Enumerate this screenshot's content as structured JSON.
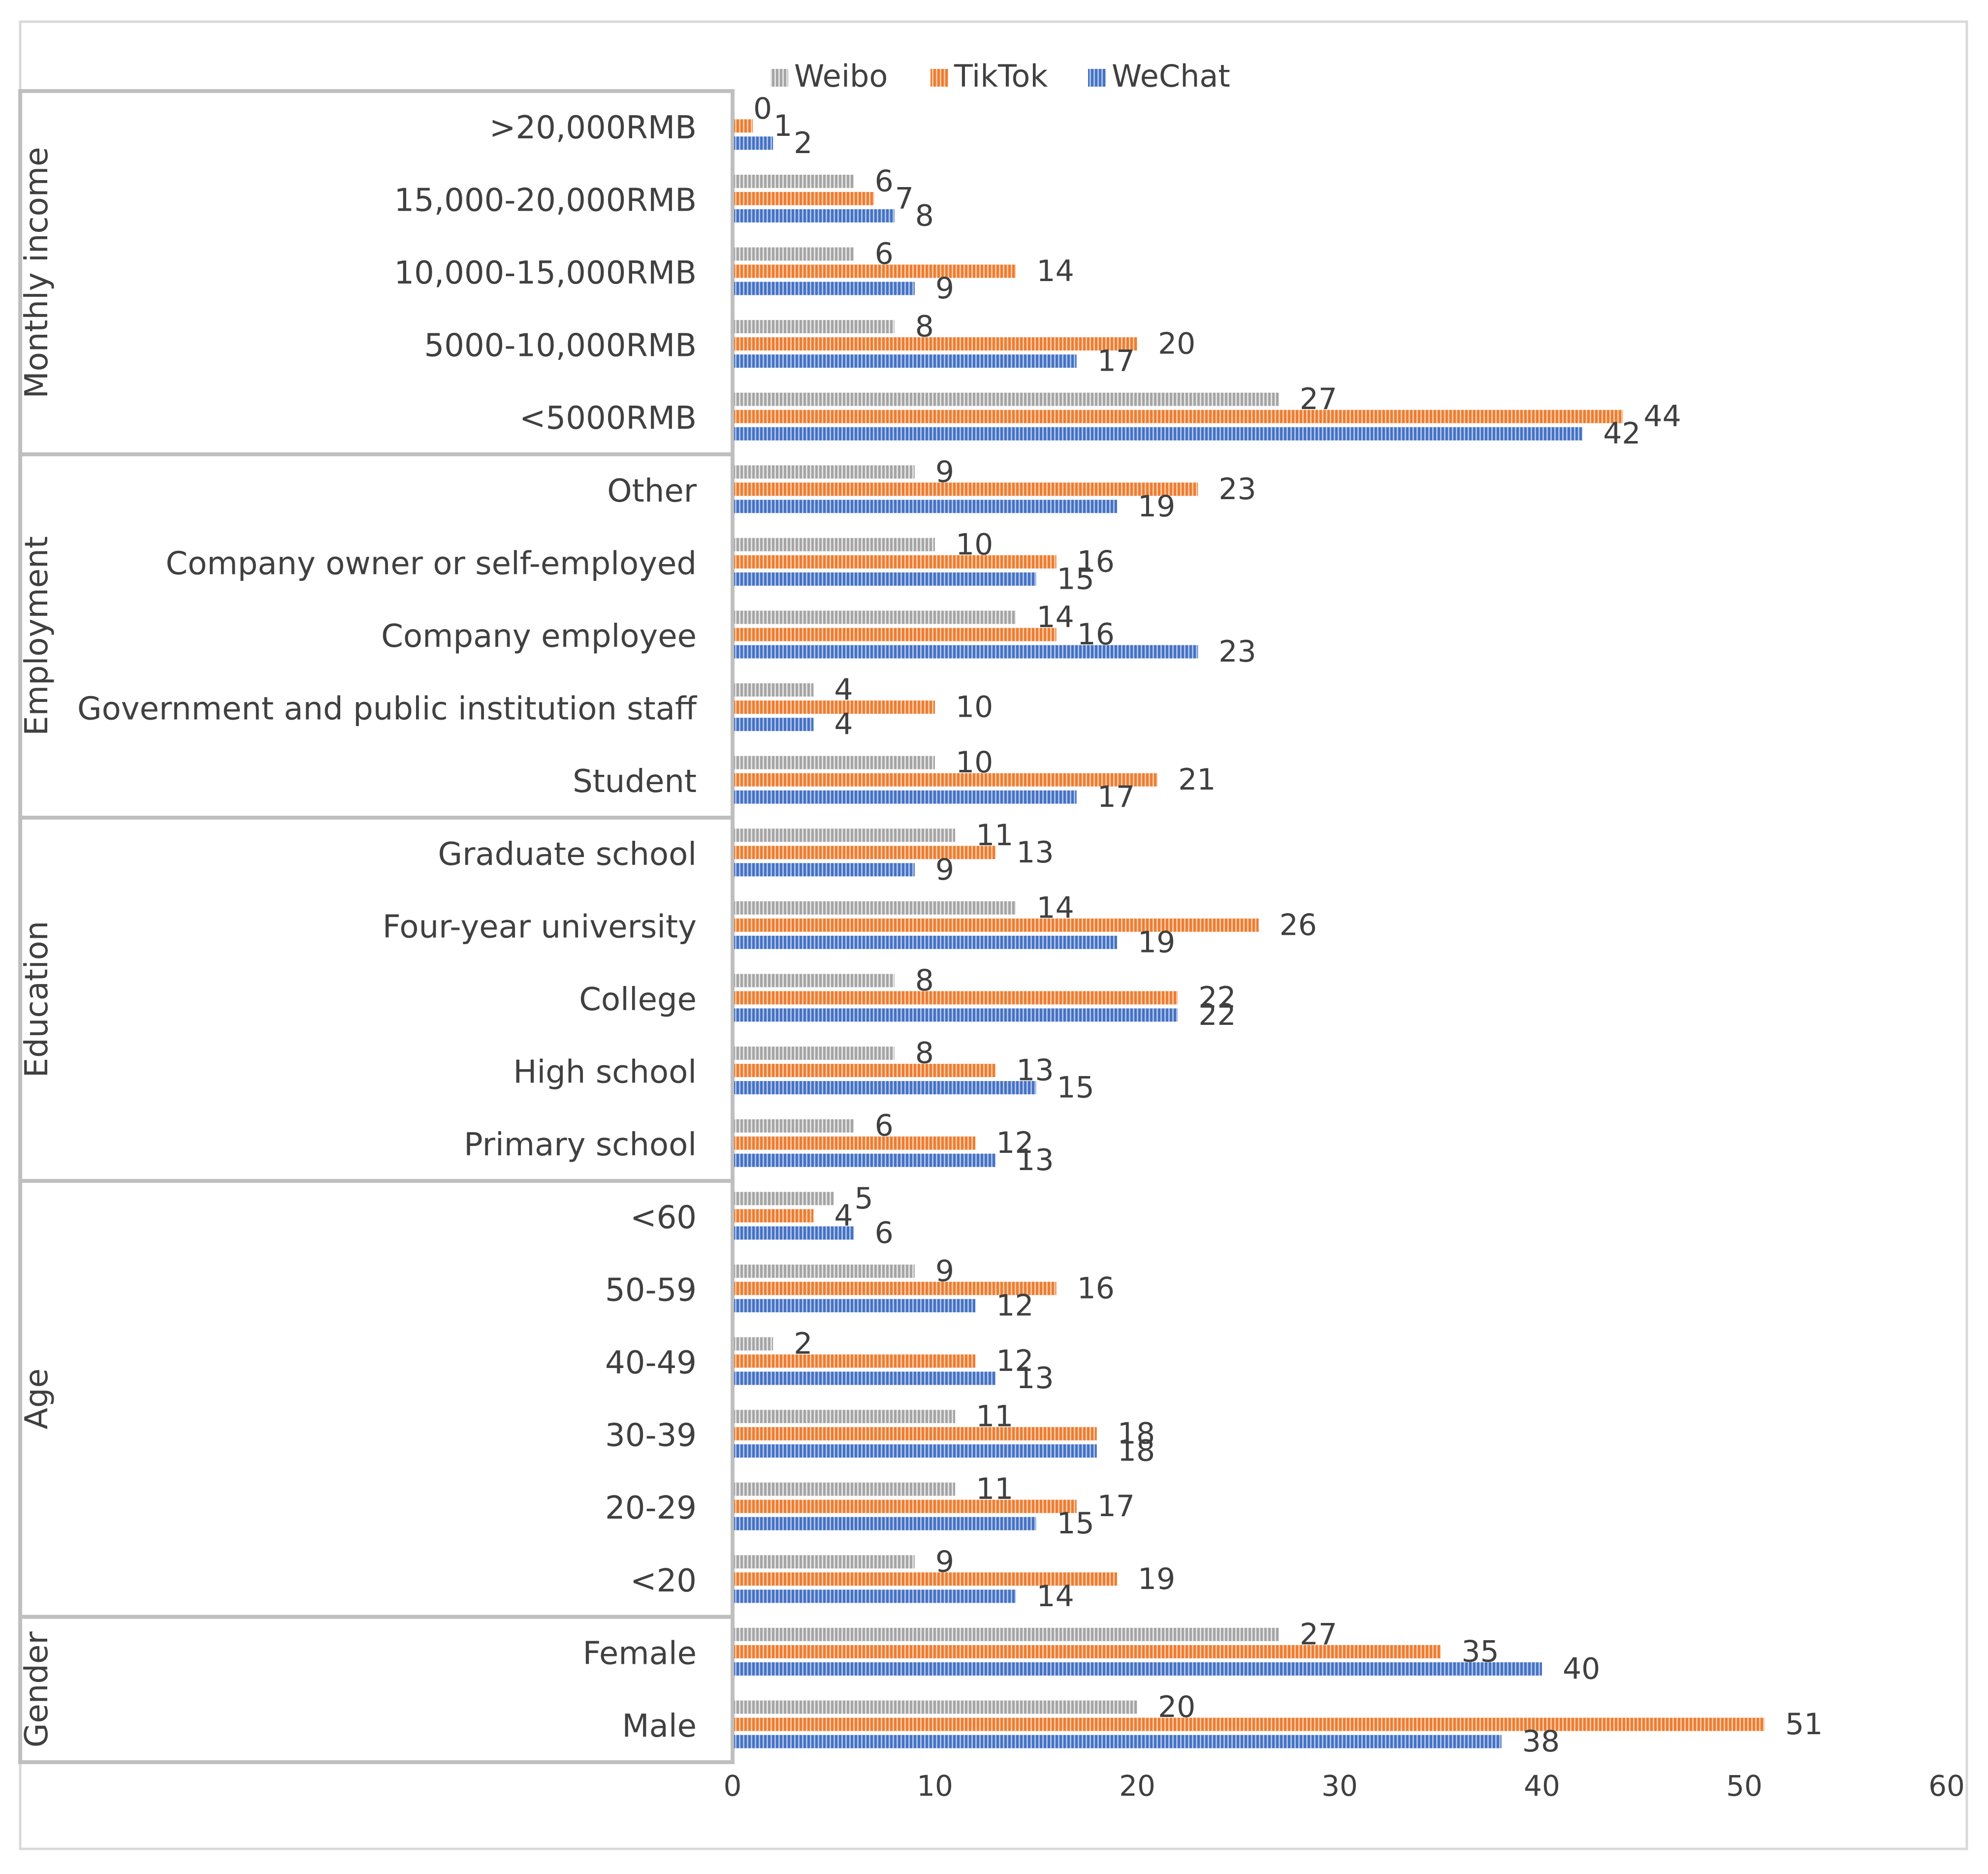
{
  "chart_data": {
    "type": "bar",
    "orientation": "horizontal",
    "title": "",
    "xlabel": "",
    "ylabel": "",
    "xlim": [
      0,
      60
    ],
    "x_ticks": [
      "0",
      "10",
      "20",
      "30",
      "40",
      "50",
      "60"
    ],
    "legend": {
      "placement": "top",
      "entries": [
        "Weibo",
        "TikTok",
        "WeChat"
      ]
    },
    "colors": {
      "Weibo": "#a5a5a5",
      "TikTok": "#ed7d31",
      "WeChat": "#4472c4"
    },
    "groups": [
      {
        "name": "Monthly  income",
        "categories": [
          ">20,000RMB",
          "15,000-20,000RMB",
          "10,000-15,000RMB",
          "5000-10,000RMB",
          "<5000RMB"
        ]
      },
      {
        "name": "Employment",
        "categories": [
          "Other",
          "Company owner or self-employed",
          "Company employee",
          "Government and public institution staff",
          "Student"
        ]
      },
      {
        "name": "Education",
        "categories": [
          "Graduate school",
          "Four-year university",
          "College",
          "High school",
          "Primary school"
        ]
      },
      {
        "name": "Age",
        "categories": [
          "<60",
          "50-59",
          "40-49",
          "30-39",
          "20-29",
          "<20"
        ]
      },
      {
        "name": "Gender",
        "categories": [
          "Female",
          "Male"
        ]
      }
    ],
    "categories": [
      ">20,000RMB",
      "15,000-20,000RMB",
      "10,000-15,000RMB",
      "5000-10,000RMB",
      "<5000RMB",
      "Other",
      "Company owner or self-employed",
      "Company employee",
      "Government and public institution staff",
      "Student",
      "Graduate school",
      "Four-year university",
      "College",
      "High school",
      "Primary school",
      "<60",
      "50-59",
      "40-49",
      "30-39",
      "20-29",
      "<20",
      "Female",
      "Male"
    ],
    "series": [
      {
        "name": "Weibo",
        "values": [
          0,
          6,
          6,
          8,
          27,
          9,
          10,
          14,
          4,
          10,
          11,
          14,
          8,
          8,
          6,
          5,
          9,
          2,
          11,
          11,
          9,
          27,
          20
        ]
      },
      {
        "name": "TikTok",
        "values": [
          1,
          7,
          14,
          20,
          44,
          23,
          16,
          16,
          10,
          21,
          13,
          26,
          22,
          13,
          12,
          4,
          16,
          12,
          18,
          17,
          19,
          35,
          51
        ]
      },
      {
        "name": "WeChat",
        "values": [
          2,
          8,
          9,
          17,
          42,
          19,
          15,
          23,
          4,
          17,
          9,
          19,
          22,
          15,
          13,
          6,
          12,
          13,
          18,
          15,
          14,
          40,
          38
        ]
      }
    ]
  }
}
